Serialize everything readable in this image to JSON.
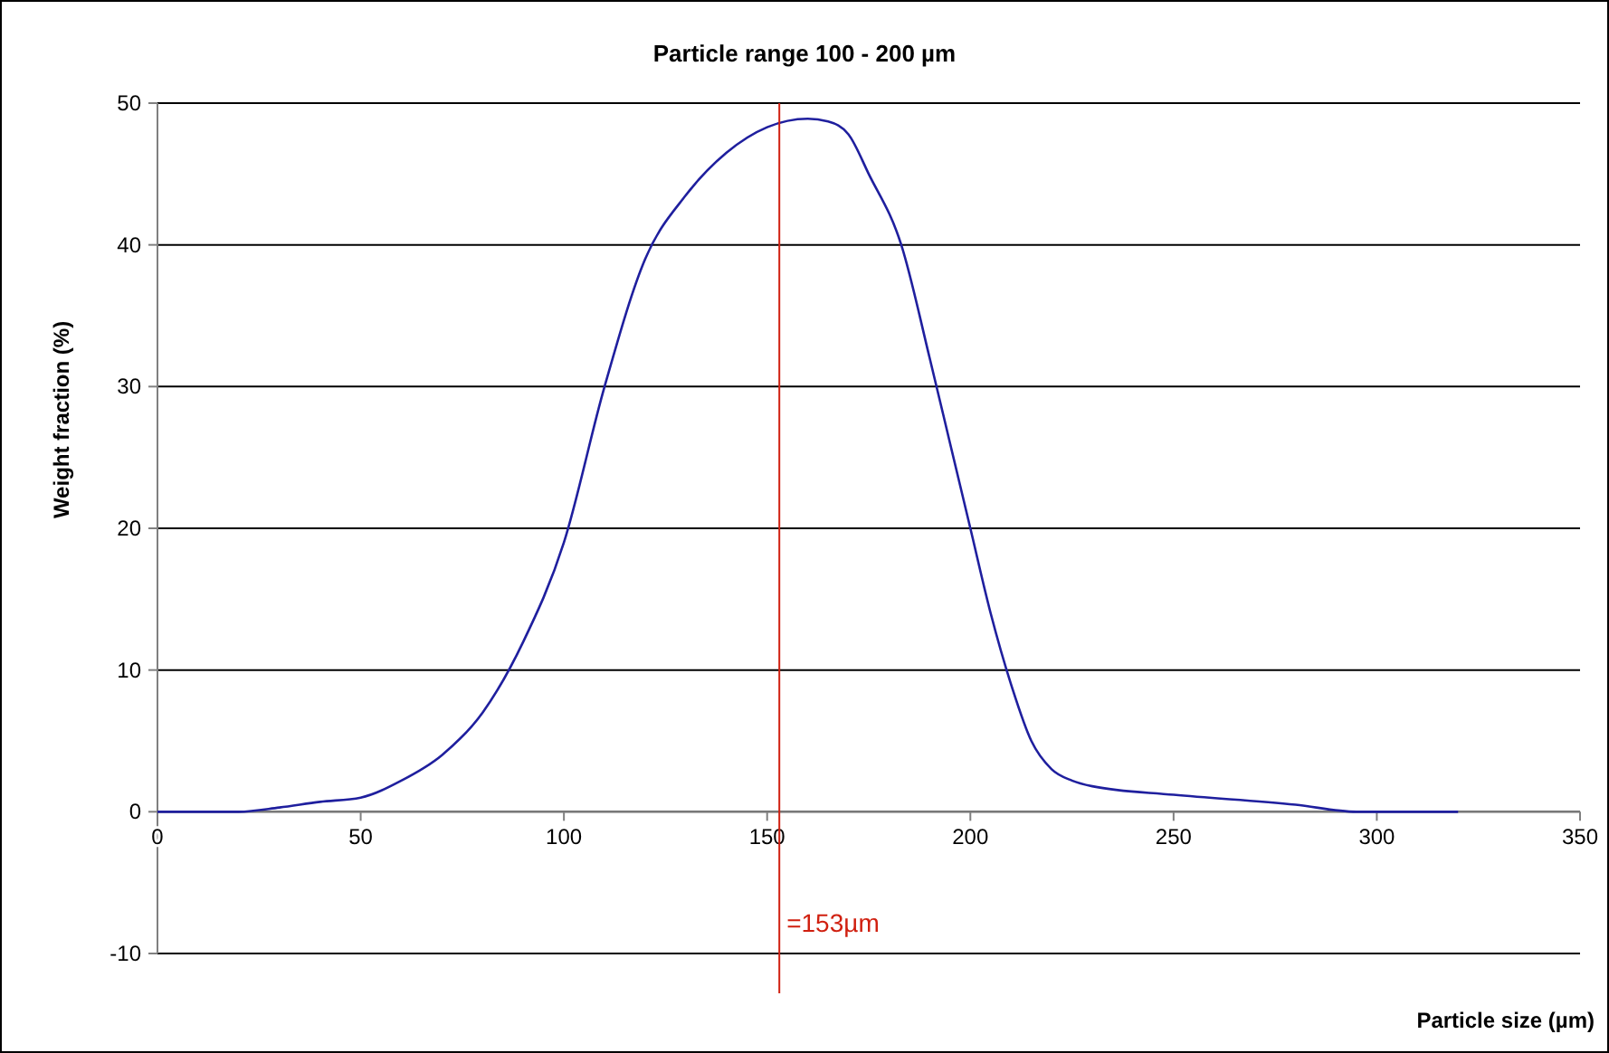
{
  "chart_data": {
    "type": "line",
    "title": "Particle range 100 - 200 µm",
    "xlabel": "Particle size (µm)",
    "ylabel": "Weight fraction (%)",
    "x": [
      0,
      20,
      30,
      40,
      50,
      60,
      70,
      80,
      90,
      100,
      110,
      120,
      130,
      140,
      150,
      160,
      165,
      170,
      175,
      183,
      190,
      195,
      200,
      205,
      210,
      215,
      220,
      225,
      230,
      250,
      280,
      295,
      320
    ],
    "series": [
      {
        "color": "#1f1f9e",
        "values": [
          0,
          0,
          0.3,
          0.7,
          1,
          2.2,
          4,
          7,
          12,
          19,
          30,
          39,
          43.5,
          46.5,
          48.3,
          48.9,
          48.7,
          47.8,
          45,
          40,
          32,
          26,
          20,
          14,
          9,
          5,
          3,
          2.2,
          1.8,
          1.2,
          0.5,
          0,
          0
        ]
      }
    ],
    "xlim": [
      0,
      350
    ],
    "xticks": [
      0,
      50,
      100,
      150,
      200,
      250,
      300,
      350
    ],
    "ylim": [
      -10,
      50
    ],
    "yticks": [
      -10,
      0,
      10,
      20,
      30,
      40,
      50
    ],
    "grid": "y",
    "marker": "none",
    "line_style": "solid",
    "ref_lines": [
      {
        "axis": "x",
        "value": 153,
        "label": "=153µm",
        "color": "#d02010"
      }
    ]
  }
}
